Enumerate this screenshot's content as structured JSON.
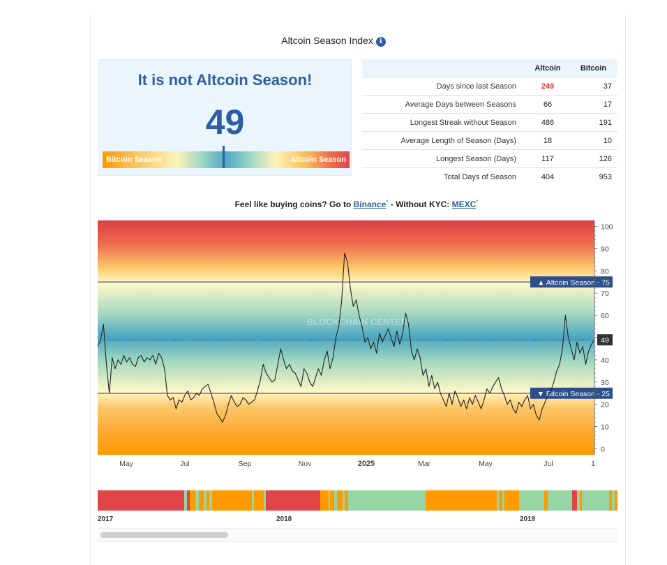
{
  "title": "Altcoin Season Index",
  "info_icon": "i",
  "index": {
    "headline": "It is not Altcoin Season!",
    "value": "49",
    "gauge_left": "Bitcoin Season",
    "gauge_right": "Altcoin Season",
    "gauge_fraction": 0.49
  },
  "stats": {
    "headers": [
      "",
      "Altcoin",
      "Bitcoin"
    ],
    "rows": [
      {
        "label": "Days since last Season",
        "altcoin": "249",
        "bitcoin": "37"
      },
      {
        "label": "Average Days between Seasons",
        "altcoin": "66",
        "bitcoin": "17"
      },
      {
        "label": "Longest Streak without Season",
        "altcoin": "486",
        "bitcoin": "191"
      },
      {
        "label": "Average Length of Season (Days)",
        "altcoin": "18",
        "bitcoin": "10"
      },
      {
        "label": "Longest Season (Days)",
        "altcoin": "117",
        "bitcoin": "126"
      },
      {
        "label": "Total Days of Season",
        "altcoin": "404",
        "bitcoin": "953"
      }
    ]
  },
  "promo": {
    "prefix": "Feel like buying coins? Go to ",
    "link1": "Binance",
    "middle": " - Without KYC: ",
    "link2": "MEXC",
    "asterisk": "*"
  },
  "chart_data": {
    "type": "line",
    "ylim": [
      0,
      100
    ],
    "yticks": [
      0,
      10,
      20,
      30,
      40,
      50,
      60,
      70,
      80,
      90,
      100
    ],
    "xticks": [
      "May",
      "Jul",
      "Sep",
      "Nov",
      "2025",
      "Mar",
      "May",
      "Jul",
      "1"
    ],
    "reference_lines": [
      {
        "value": 75,
        "label": "▲ Altcoin Season - 75"
      },
      {
        "value": 25,
        "label": "▼ Bitcoin Season - 25"
      }
    ],
    "current": {
      "value": 49,
      "label": "49"
    },
    "watermark": "BLOCKCHAIN CENTER",
    "series": [
      {
        "name": "Altcoin Season Index",
        "values": [
          46,
          49,
          56,
          38,
          25,
          41,
          36,
          40,
          38,
          42,
          39,
          41,
          38,
          37,
          41,
          42,
          39,
          41,
          40,
          42,
          38,
          43,
          41,
          36,
          24,
          22,
          23,
          18,
          22,
          21,
          24,
          26,
          22,
          23,
          25,
          24,
          27,
          28,
          29,
          25,
          21,
          16,
          14,
          12,
          15,
          20,
          24,
          21,
          19,
          20,
          23,
          22,
          20,
          21,
          22,
          26,
          31,
          38,
          34,
          32,
          30,
          31,
          38,
          45,
          40,
          36,
          38,
          35,
          34,
          31,
          28,
          36,
          34,
          30,
          28,
          32,
          36,
          33,
          40,
          44,
          36,
          41,
          50,
          55,
          67,
          88,
          84,
          72,
          64,
          67,
          60,
          55,
          48,
          50,
          45,
          48,
          43,
          52,
          48,
          51,
          54,
          50,
          46,
          53,
          47,
          52,
          61,
          56,
          44,
          40,
          45,
          41,
          33,
          36,
          28,
          33,
          27,
          30,
          25,
          22,
          19,
          25,
          20,
          26,
          23,
          19,
          22,
          18,
          23,
          20,
          24,
          21,
          18,
          22,
          27,
          25,
          28,
          30,
          32,
          27,
          24,
          20,
          22,
          18,
          16,
          21,
          19,
          22,
          24,
          18,
          20,
          15,
          13,
          18,
          21,
          24,
          26,
          30,
          35,
          38,
          45,
          60,
          50,
          45,
          40,
          48,
          43,
          46,
          38,
          44,
          47,
          49
        ]
      }
    ],
    "title": "",
    "xlabel": "",
    "ylabel": ""
  },
  "timeline": {
    "labels": [
      "2017",
      "2018",
      "2019"
    ],
    "segments": [
      {
        "state": "altcoin",
        "weight": 14.8
      },
      {
        "state": "neutral",
        "weight": 0.4
      },
      {
        "state": "altcoin",
        "weight": 0.5
      },
      {
        "state": "bitcoin",
        "weight": 1.0
      },
      {
        "state": "neutral",
        "weight": 0.6
      },
      {
        "state": "bitcoin",
        "weight": 0.8
      },
      {
        "state": "neutral",
        "weight": 0.5
      },
      {
        "state": "bitcoin",
        "weight": 0.4
      },
      {
        "state": "neutral",
        "weight": 0.5
      },
      {
        "state": "bitcoin",
        "weight": 6.8
      },
      {
        "state": "neutral",
        "weight": 0.4
      },
      {
        "state": "bitcoin",
        "weight": 1.6
      },
      {
        "state": "neutral",
        "weight": 0.4
      },
      {
        "state": "altcoin",
        "weight": 9.3
      },
      {
        "state": "bitcoin",
        "weight": 1.4
      },
      {
        "state": "neutral",
        "weight": 0.3
      },
      {
        "state": "bitcoin",
        "weight": 0.7
      },
      {
        "state": "neutral",
        "weight": 0.4
      },
      {
        "state": "bitcoin",
        "weight": 1.0
      },
      {
        "state": "neutral",
        "weight": 0.4
      },
      {
        "state": "bitcoin",
        "weight": 0.5
      },
      {
        "state": "neutral",
        "weight": 13.3
      },
      {
        "state": "bitcoin",
        "weight": 12.1
      },
      {
        "state": "neutral",
        "weight": 0.4
      },
      {
        "state": "bitcoin",
        "weight": 0.6
      },
      {
        "state": "neutral",
        "weight": 0.3
      },
      {
        "state": "bitcoin",
        "weight": 2.5
      },
      {
        "state": "neutral",
        "weight": 4.3
      },
      {
        "state": "bitcoin",
        "weight": 0.6
      },
      {
        "state": "neutral",
        "weight": 4.2
      },
      {
        "state": "altcoin",
        "weight": 0.8
      },
      {
        "state": "neutral",
        "weight": 0.5
      },
      {
        "state": "bitcoin",
        "weight": 0.4
      },
      {
        "state": "neutral",
        "weight": 4.6
      },
      {
        "state": "bitcoin",
        "weight": 0.5
      },
      {
        "state": "neutral",
        "weight": 0.4
      },
      {
        "state": "bitcoin",
        "weight": 0.5
      }
    ]
  },
  "colors": {
    "accent": "#2d5ea3",
    "altcoin": "#df4547",
    "bitcoin": "#ff9a00",
    "neutral": "#95d6a4",
    "highlight": "#e0302a"
  }
}
